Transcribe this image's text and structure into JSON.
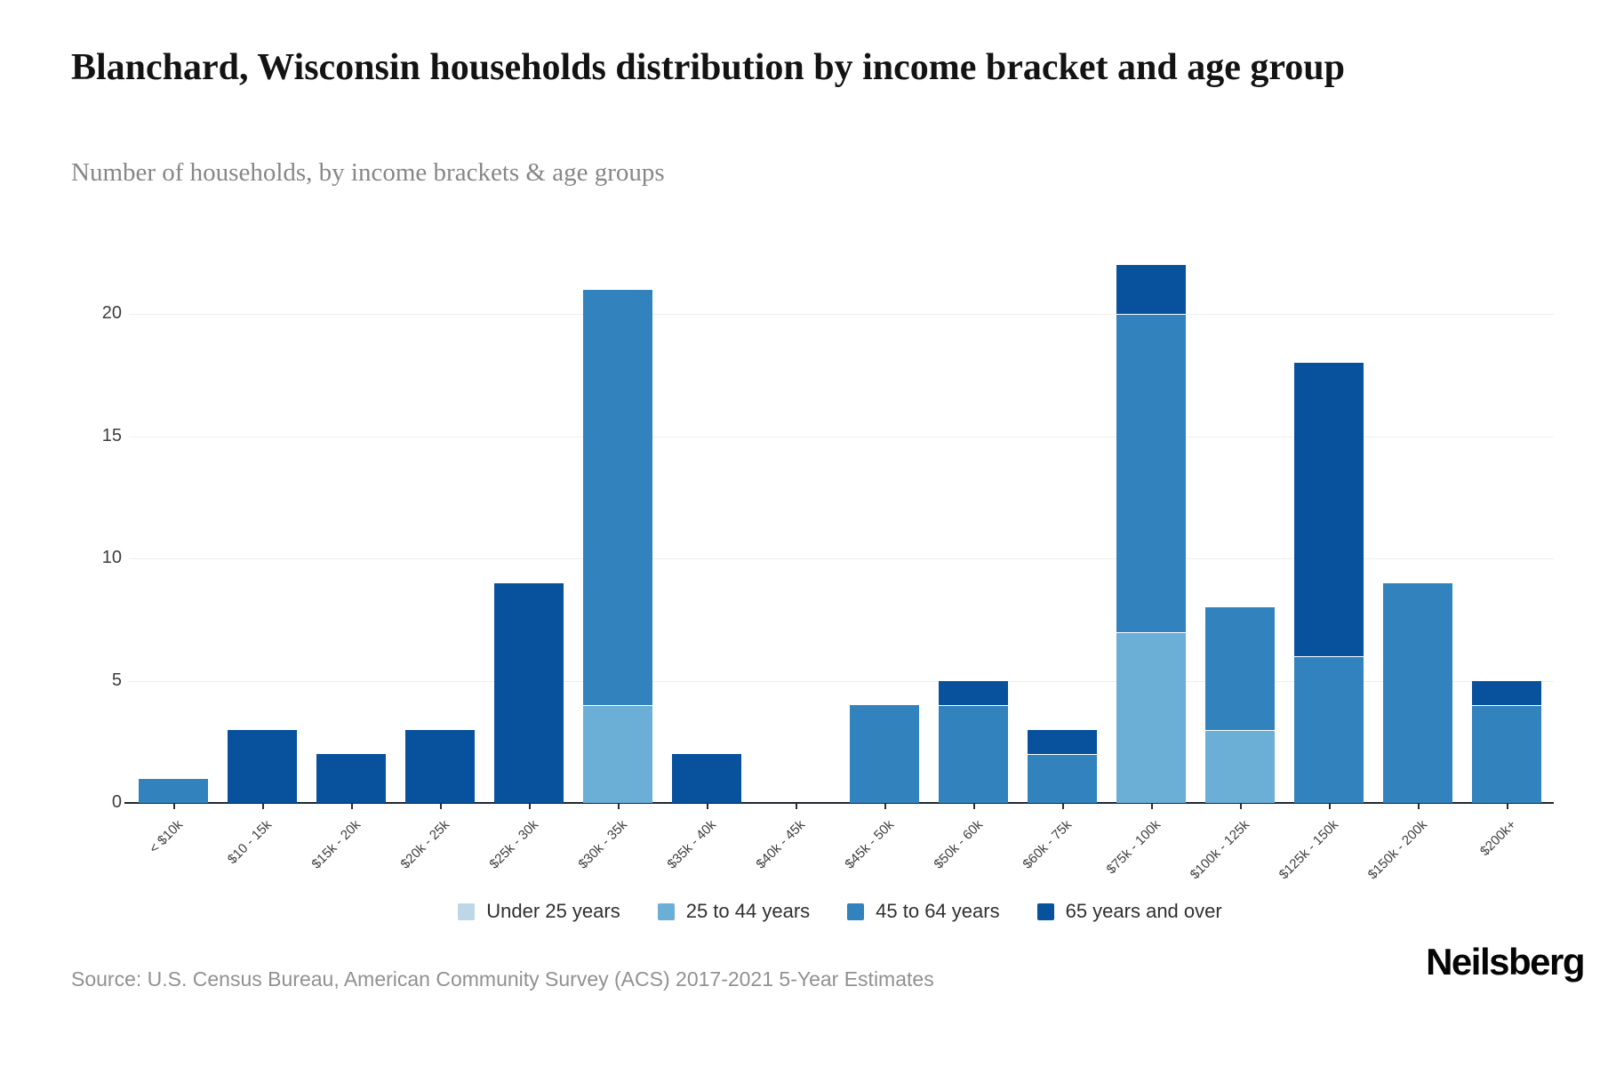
{
  "header": {
    "title": "Blanchard, Wisconsin households distribution by income bracket and age group",
    "subtitle": "Number of households, by income brackets & age groups"
  },
  "footer": {
    "source": "Source: U.S. Census Bureau, American Community Survey (ACS) 2017-2021 5-Year Estimates",
    "brand": "Neilsberg"
  },
  "colors": {
    "under_25": "#bdd7e7",
    "age_25_44": "#6baed6",
    "age_45_64": "#3182bd",
    "age_65_over": "#08519c",
    "axis": "#1d2733",
    "gridline": "#eeeeee",
    "tick": "#2e2e2e"
  },
  "chart_data": {
    "type": "bar",
    "stacked": true,
    "title": "Blanchard, Wisconsin households distribution by income bracket and age group",
    "subtitle": "Number of households, by income brackets & age groups",
    "xlabel": "",
    "ylabel": "",
    "ylim": [
      0,
      22
    ],
    "yticks": [
      0,
      5,
      10,
      15,
      20
    ],
    "grid": true,
    "legend_position": "bottom",
    "categories": [
      "< $10k",
      "$10 - 15k",
      "$15k - 20k",
      "$20k - 25k",
      "$25k - 30k",
      "$30k - 35k",
      "$35k - 40k",
      "$40k - 45k",
      "$45k - 50k",
      "$50k - 60k",
      "$60k - 75k",
      "$75k - 100k",
      "$100k - 125k",
      "$125k - 150k",
      "$150k - 200k",
      "$200k+"
    ],
    "series": [
      {
        "name": "Under 25 years",
        "color": "#bdd7e7",
        "values": [
          0,
          0,
          0,
          0,
          0,
          0,
          0,
          0,
          0,
          0,
          0,
          0,
          0,
          0,
          0,
          0
        ]
      },
      {
        "name": "25 to 44 years",
        "color": "#6baed6",
        "values": [
          0,
          0,
          0,
          0,
          0,
          4,
          0,
          0,
          0,
          0,
          0,
          7,
          3,
          0,
          0,
          0
        ]
      },
      {
        "name": "45 to 64 years",
        "color": "#3182bd",
        "values": [
          1,
          0,
          0,
          0,
          0,
          17,
          0,
          0,
          4,
          4,
          2,
          13,
          5,
          6,
          9,
          4
        ]
      },
      {
        "name": "65 years and over",
        "color": "#08519c",
        "values": [
          0,
          3,
          2,
          3,
          9,
          0,
          2,
          0,
          0,
          1,
          1,
          2,
          0,
          12,
          0,
          1
        ]
      }
    ],
    "totals": [
      1,
      3,
      2,
      3,
      9,
      21,
      2,
      0,
      4,
      5,
      3,
      22,
      8,
      18,
      9,
      5
    ]
  }
}
